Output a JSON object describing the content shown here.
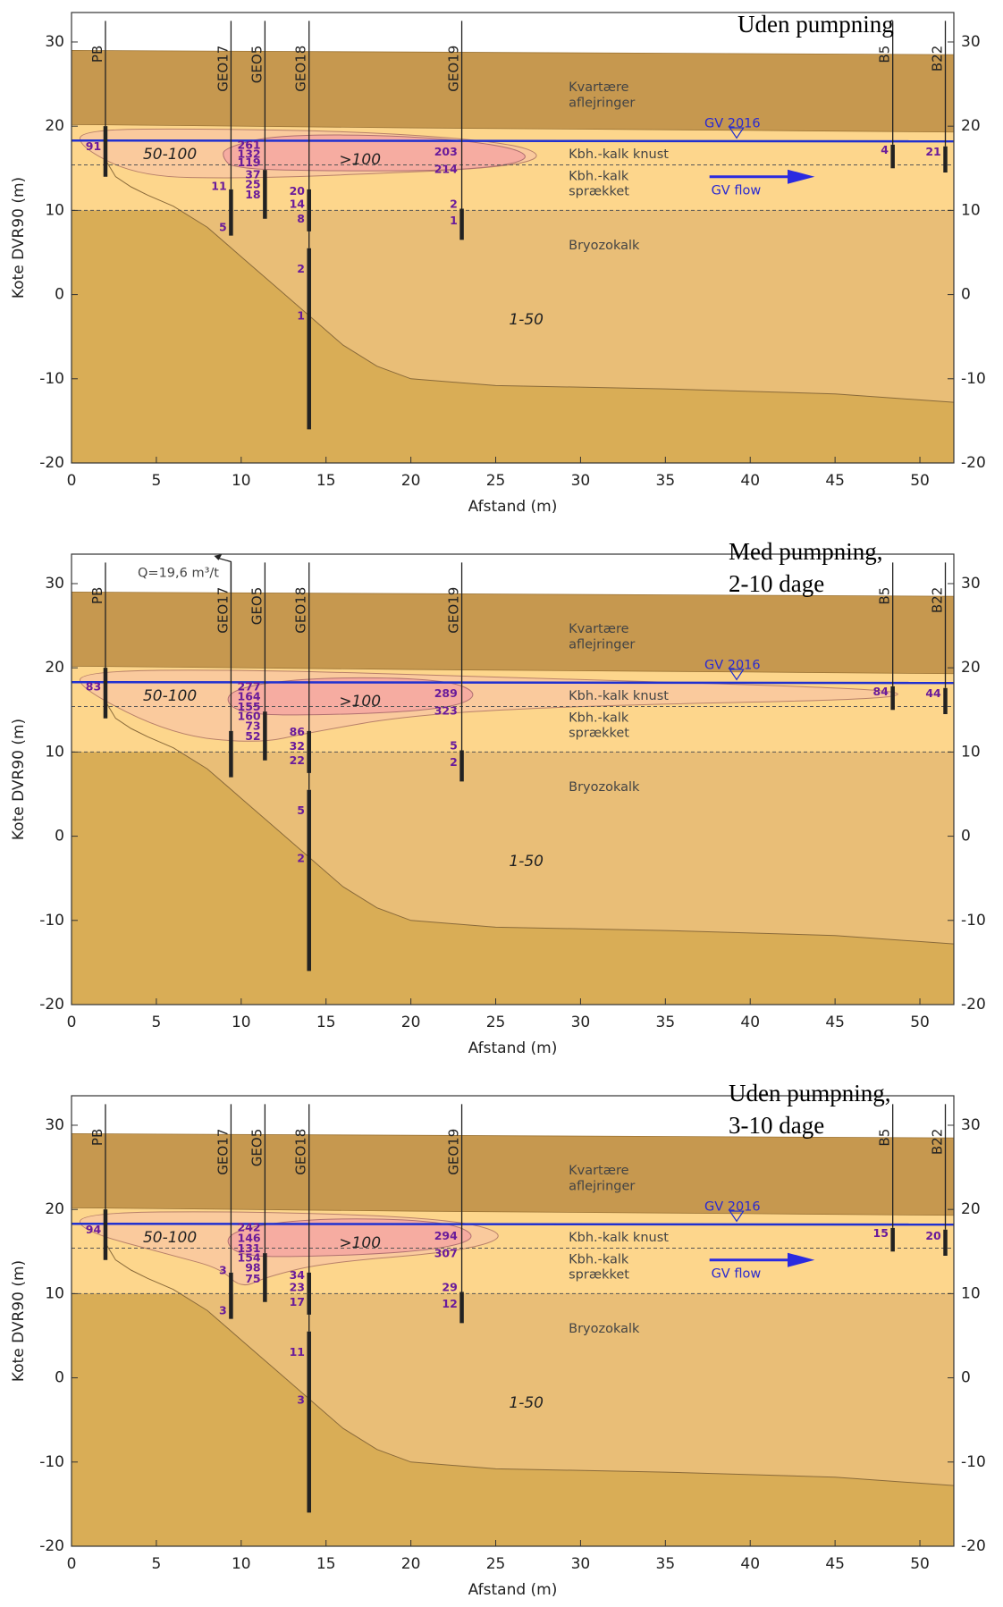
{
  "chart_data": [
    {
      "type": "cross-section",
      "title": [
        "Uden pumpning"
      ],
      "xlabel": "Afstand (m)",
      "ylabel": "Kote DVR90 (m)",
      "xlim": [
        0,
        52
      ],
      "ylim": [
        -20,
        33.5
      ],
      "xticks": [
        0,
        5,
        10,
        15,
        20,
        25,
        30,
        35,
        40,
        45,
        50
      ],
      "yticks": [
        -20,
        -10,
        0,
        10,
        20,
        30
      ],
      "y2lim": [
        -20,
        33.5
      ],
      "y2ticks": [
        -20,
        -10,
        0,
        10,
        20,
        30
      ],
      "wells": [
        {
          "name": "PB",
          "x": 2,
          "readings": [
            91
          ]
        },
        {
          "name": "GEO17",
          "x": 9.4,
          "readings": [
            11,
            5
          ]
        },
        {
          "name": "GEO5",
          "x": 11.4,
          "readings": [
            261,
            132,
            119,
            37,
            25,
            18
          ]
        },
        {
          "name": "GEO18",
          "x": 14,
          "readings": [
            20,
            14,
            8,
            2,
            1
          ]
        },
        {
          "name": "GEO19",
          "x": 23,
          "readings": [
            203,
            214,
            2,
            1
          ]
        },
        {
          "name": "B5",
          "x": 48.4,
          "readings": [
            4
          ]
        },
        {
          "name": "B22",
          "x": 51.5,
          "readings": [
            21
          ]
        }
      ],
      "annotations": [
        "Kvartære",
        "aflejringer",
        "Kbh.-kalk knust",
        "Kbh.-kalk",
        "sprækket",
        "Bryozokalk",
        "1-50",
        "50-100",
        ">100",
        "GV 2016",
        "GV flow"
      ]
    },
    {
      "type": "cross-section",
      "title": [
        "Med pumpning,",
        "2-10 dage"
      ],
      "xlabel": "Afstand (m)",
      "ylabel": "Kote DVR90 (m)",
      "xlim": [
        0,
        52
      ],
      "ylim": [
        -20,
        33.5
      ],
      "xticks": [
        0,
        5,
        10,
        15,
        20,
        25,
        30,
        35,
        40,
        45,
        50
      ],
      "yticks": [
        -20,
        -10,
        0,
        10,
        20,
        30
      ],
      "y2lim": [
        -20,
        33.5
      ],
      "y2ticks": [
        -20,
        -10,
        0,
        10,
        20,
        30
      ],
      "wells": [
        {
          "name": "PB",
          "x": 2,
          "readings": [
            83
          ]
        },
        {
          "name": "GEO17",
          "x": 9.4,
          "readings": []
        },
        {
          "name": "GEO5",
          "x": 11.4,
          "readings": [
            277,
            164,
            155,
            160,
            73,
            52
          ]
        },
        {
          "name": "GEO18",
          "x": 14,
          "readings": [
            86,
            32,
            22,
            5,
            2
          ]
        },
        {
          "name": "GEO19",
          "x": 23,
          "readings": [
            289,
            323,
            5,
            2
          ]
        },
        {
          "name": "B5",
          "x": 48.4,
          "readings": [
            84
          ]
        },
        {
          "name": "B22",
          "x": 51.5,
          "readings": [
            44
          ]
        }
      ],
      "annotations": [
        "Kvartære",
        "aflejringer",
        "Kbh.-kalk knust",
        "Kbh.-kalk",
        "sprækket",
        "Bryozokalk",
        "1-50",
        "50-100",
        ">100",
        "GV 2016",
        "Q=19,6 m³/t"
      ]
    },
    {
      "type": "cross-section",
      "title": [
        "Uden pumpning,",
        "3-10 dage"
      ],
      "xlabel": "Afstand (m)",
      "ylabel": "Kote DVR90 (m)",
      "xlim": [
        0,
        52
      ],
      "ylim": [
        -20,
        33.5
      ],
      "xticks": [
        0,
        5,
        10,
        15,
        20,
        25,
        30,
        35,
        40,
        45,
        50
      ],
      "yticks": [
        -20,
        -10,
        0,
        10,
        20,
        30
      ],
      "y2lim": [
        -20,
        33.5
      ],
      "y2ticks": [
        -20,
        -10,
        0,
        10,
        20,
        30
      ],
      "wells": [
        {
          "name": "PB",
          "x": 2,
          "readings": [
            94
          ]
        },
        {
          "name": "GEO17",
          "x": 9.4,
          "readings": [
            3,
            3
          ]
        },
        {
          "name": "GEO5",
          "x": 11.4,
          "readings": [
            242,
            146,
            131,
            154,
            98,
            75
          ]
        },
        {
          "name": "GEO18",
          "x": 14,
          "readings": [
            34,
            23,
            17,
            11,
            3
          ]
        },
        {
          "name": "GEO19",
          "x": 23,
          "readings": [
            294,
            307,
            29,
            12
          ]
        },
        {
          "name": "B5",
          "x": 48.4,
          "readings": [
            15
          ]
        },
        {
          "name": "B22",
          "x": 51.5,
          "readings": [
            20
          ]
        }
      ],
      "annotations": [
        "Kvartære",
        "aflejringer",
        "Kbh.-kalk knust",
        "Kbh.-kalk",
        "sprækket",
        "Bryozokalk",
        "1-50",
        "50-100",
        ">100",
        "GV 2016",
        "GV flow"
      ]
    }
  ]
}
